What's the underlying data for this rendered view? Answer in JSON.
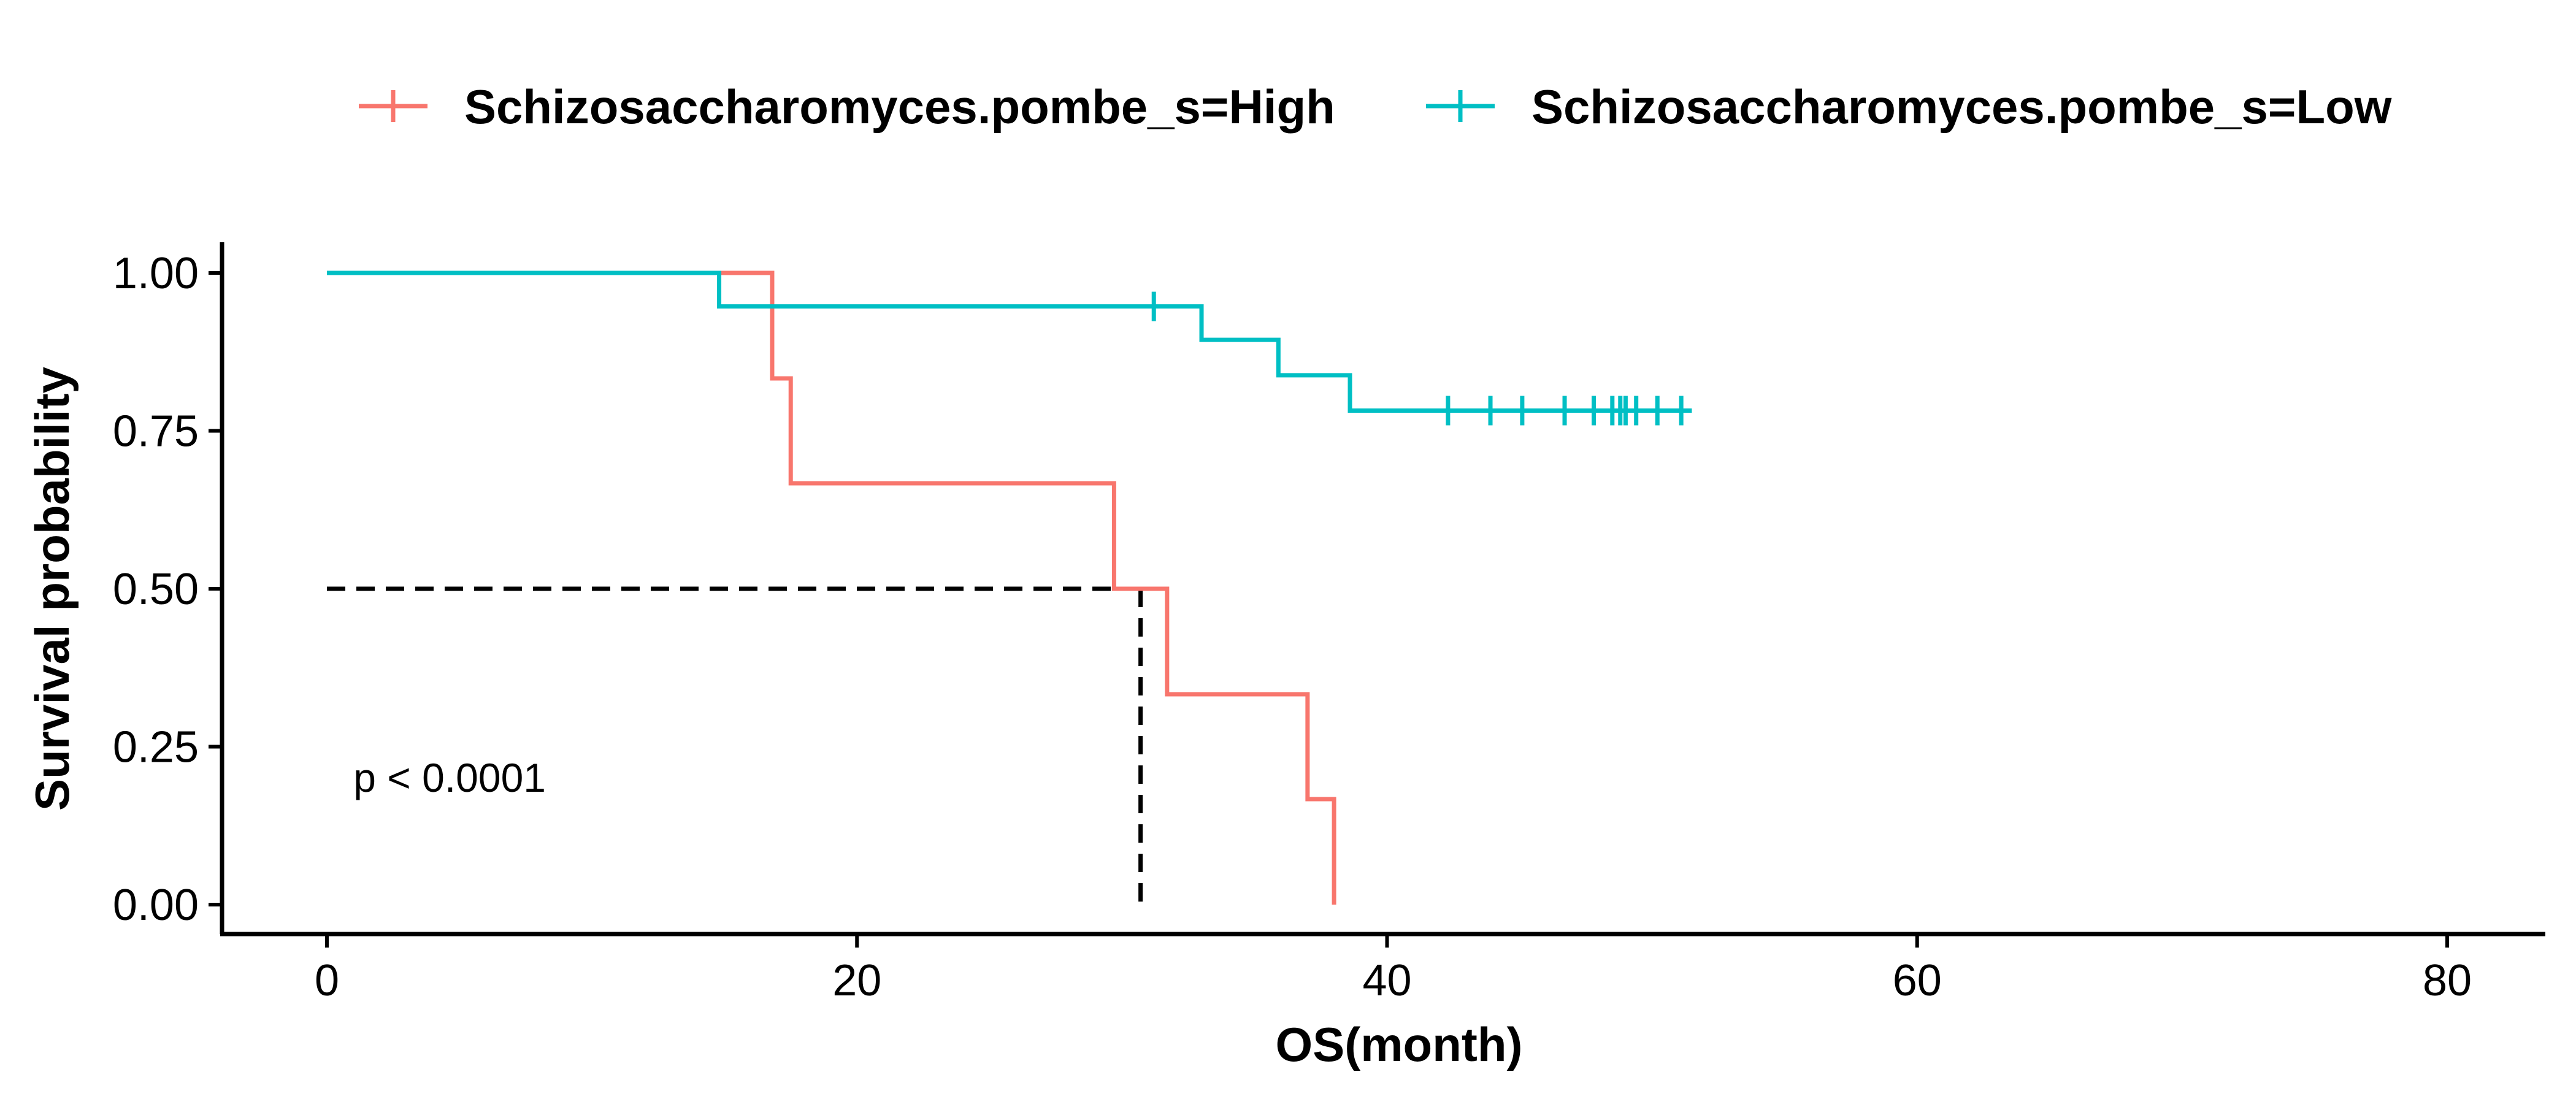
{
  "chart_data": {
    "type": "line",
    "subtype": "kaplan-meier-step",
    "xlabel": "OS(month)",
    "ylabel": "Survival probability",
    "xlim": [
      -4,
      84
    ],
    "ylim": [
      -0.05,
      1.05
    ],
    "x_ticks": [
      0,
      20,
      40,
      60,
      80
    ],
    "y_ticks": [
      0.0,
      0.25,
      0.5,
      0.75,
      1.0
    ],
    "y_tick_labels": [
      "0.00",
      "0.25",
      "0.50",
      "0.75",
      "1.00"
    ],
    "legend_position": "top",
    "grid": false,
    "annotation": "p < 0.0001",
    "annotation_at": {
      "x": 1,
      "y": 0.2
    },
    "series": [
      {
        "name": "Schizosaccharomyces.pombe_s=High",
        "color": "#F8766D",
        "steps": [
          [
            0,
            1.0
          ],
          [
            16.8,
            0.833
          ],
          [
            17.5,
            0.667
          ],
          [
            29.7,
            0.5
          ],
          [
            31.7,
            0.333
          ],
          [
            37.0,
            0.167
          ],
          [
            38.0,
            0.0
          ]
        ],
        "censor_x": []
      },
      {
        "name": "Schizosaccharomyces.pombe_s=Low",
        "color": "#00BFC4",
        "steps": [
          [
            0,
            1.0
          ],
          [
            14.8,
            0.947
          ],
          [
            33.0,
            0.894
          ],
          [
            35.9,
            0.838
          ],
          [
            38.6,
            0.782
          ],
          [
            51.5,
            0.782
          ]
        ],
        "censor_x": [
          31.2,
          42.3,
          43.9,
          45.1,
          46.7,
          47.8,
          48.5,
          48.8,
          49.0,
          49.4,
          50.2,
          51.1
        ]
      }
    ],
    "median_line": {
      "x": 30.7,
      "y": 0.5
    }
  }
}
